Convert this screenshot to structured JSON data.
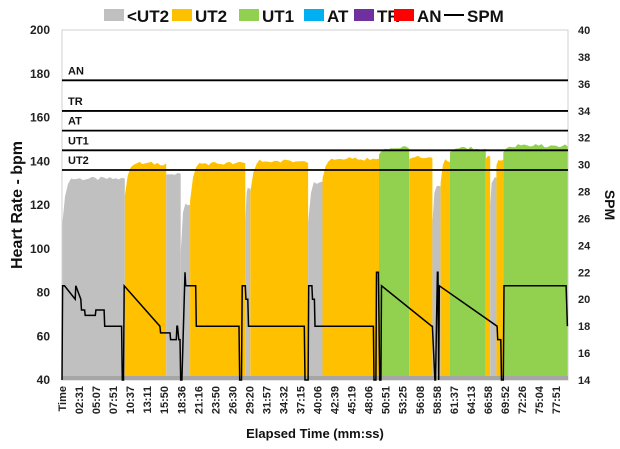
{
  "chart_data": {
    "type": "area",
    "title": "",
    "xlabel": "Elapsed Time (mm:ss)",
    "ylabel": "Heart Rate - bpm",
    "y2label": "SPM",
    "ylim": [
      40,
      200
    ],
    "y2lim": [
      14,
      40
    ],
    "yticks": [
      40,
      60,
      80,
      100,
      120,
      140,
      160,
      180,
      200
    ],
    "y2ticks": [
      14,
      16,
      18,
      20,
      22,
      24,
      26,
      28,
      30,
      32,
      34,
      36,
      38,
      40
    ],
    "xlim_minutes": [
      0,
      80.6
    ],
    "xtick_labels": [
      "Time",
      "02:31",
      "05:07",
      "07:51",
      "10:37",
      "13:11",
      "15:50",
      "18:36",
      "21:16",
      "23:50",
      "26:30",
      "29:20",
      "31:57",
      "34:32",
      "37:15",
      "40:06",
      "42:39",
      "45:19",
      "48:06",
      "50:51",
      "53:25",
      "56:08",
      "58:58",
      "61:37",
      "64:13",
      "66:58",
      "69:52",
      "72:26",
      "75:04",
      "77:51"
    ],
    "legend": {
      "placement": "top",
      "entries": [
        {
          "name": "<UT2",
          "color": "#c0c0c0",
          "kind": "area"
        },
        {
          "name": "UT2",
          "color": "#ffc000",
          "kind": "area"
        },
        {
          "name": "UT1",
          "color": "#92d050",
          "kind": "area"
        },
        {
          "name": "AT",
          "color": "#00b0f0",
          "kind": "area"
        },
        {
          "name": "TR",
          "color": "#7030a0",
          "kind": "area"
        },
        {
          "name": "AN",
          "color": "#ff0000",
          "kind": "area"
        },
        {
          "name": "SPM",
          "color": "#000000",
          "kind": "line"
        }
      ]
    },
    "zone_thresholds_bpm": [
      {
        "label": "UT2",
        "bpm": 136
      },
      {
        "label": "UT1",
        "bpm": 145
      },
      {
        "label": "AT",
        "bpm": 154
      },
      {
        "label": "TR",
        "bpm": 163
      },
      {
        "label": "AN",
        "bpm": 177
      }
    ],
    "heart_rate_segments": [
      {
        "start": 0.0,
        "end": 10.0,
        "zone": "<UT2",
        "bpm_start": 110,
        "bpm_plateau": 132
      },
      {
        "start": 10.0,
        "end": 16.6,
        "zone": "UT2",
        "bpm_start": 124,
        "bpm_plateau": 139
      },
      {
        "start": 16.6,
        "end": 18.9,
        "zone": "<UT2",
        "bpm_start": 134,
        "bpm_plateau": 134
      },
      {
        "start": 18.9,
        "end": 20.4,
        "zone": "<UT2",
        "bpm_start": 98,
        "bpm_plateau": 120
      },
      {
        "start": 20.4,
        "end": 29.2,
        "zone": "UT2",
        "bpm_start": 122,
        "bpm_plateau": 139
      },
      {
        "start": 29.2,
        "end": 30.0,
        "zone": "<UT2",
        "bpm_start": 112,
        "bpm_plateau": 128
      },
      {
        "start": 30.0,
        "end": 39.2,
        "zone": "UT2",
        "bpm_start": 126,
        "bpm_plateau": 140
      },
      {
        "start": 39.2,
        "end": 41.5,
        "zone": "<UT2",
        "bpm_start": 112,
        "bpm_plateau": 130
      },
      {
        "start": 41.5,
        "end": 50.5,
        "zone": "UT2",
        "bpm_start": 132,
        "bpm_plateau": 141
      },
      {
        "start": 50.5,
        "end": 55.3,
        "zone": "UT1",
        "bpm_start": 143,
        "bpm_plateau": 146
      },
      {
        "start": 55.3,
        "end": 59.0,
        "zone": "UT2",
        "bpm_start": 141,
        "bpm_plateau": 142
      },
      {
        "start": 59.0,
        "end": 60.3,
        "zone": "<UT2",
        "bpm_start": 112,
        "bpm_plateau": 128
      },
      {
        "start": 60.3,
        "end": 61.8,
        "zone": "UT2",
        "bpm_start": 130,
        "bpm_plateau": 140
      },
      {
        "start": 61.8,
        "end": 67.5,
        "zone": "UT1",
        "bpm_start": 144,
        "bpm_plateau": 146
      },
      {
        "start": 67.5,
        "end": 68.2,
        "zone": "UT2",
        "bpm_start": 141,
        "bpm_plateau": 142
      },
      {
        "start": 68.2,
        "end": 69.2,
        "zone": "<UT2",
        "bpm_start": 120,
        "bpm_plateau": 132
      },
      {
        "start": 69.2,
        "end": 70.3,
        "zone": "UT2",
        "bpm_start": 138,
        "bpm_plateau": 141
      },
      {
        "start": 70.3,
        "end": 80.6,
        "zone": "UT1",
        "bpm_start": 144,
        "bpm_plateau": 147
      }
    ],
    "spm_series": {
      "name": "SPM",
      "minutes": [
        0,
        0.1,
        0.4,
        2.1,
        2.2,
        3.0,
        3.1,
        3.6,
        3.7,
        5.3,
        5.4,
        6.7,
        6.8,
        9.5,
        9.6,
        9.8,
        9.9,
        15.6,
        15.7,
        17.2,
        17.3,
        18.2,
        18.3,
        18.4,
        18.6,
        18.8,
        18.9,
        19.1,
        19.6,
        19.7,
        21.3,
        21.4,
        28.2,
        28.3,
        28.6,
        28.7,
        29.2,
        29.3,
        29.6,
        29.7,
        38.6,
        38.7,
        39.2,
        39.3,
        39.8,
        39.9,
        40.2,
        40.3,
        49.6,
        49.7,
        50.0,
        50.1,
        50.4,
        50.6,
        50.8,
        50.9,
        58.9,
        59.0,
        59.4,
        59.5,
        59.8,
        59.9,
        60.0,
        60.1,
        69.3,
        69.4,
        69.9,
        70.0,
        70.3,
        70.4,
        80.3,
        80.5
      ],
      "values": [
        14,
        21,
        21,
        20,
        21,
        20,
        19.2,
        19.2,
        18.8,
        18.8,
        19.2,
        19.2,
        18,
        18,
        14,
        14,
        21,
        18,
        17.5,
        17.5,
        17,
        17,
        18,
        18,
        17,
        17,
        14,
        14,
        22,
        21,
        21,
        18,
        18,
        14,
        14,
        21,
        21,
        20,
        20,
        18,
        18,
        14,
        14,
        21,
        21,
        20,
        20,
        18,
        18,
        14,
        14,
        22,
        22,
        14,
        14,
        21,
        18,
        18,
        14,
        14,
        22,
        22,
        14,
        21,
        18,
        17,
        17,
        14,
        14,
        21,
        21,
        18
      ]
    }
  }
}
